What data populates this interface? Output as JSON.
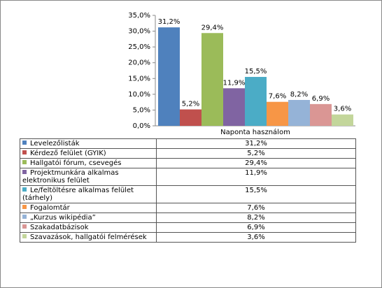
{
  "chart_data": {
    "type": "bar",
    "categories": [
      "Naponta használom"
    ],
    "ylim": [
      0,
      35
    ],
    "yticks": [
      {
        "value": 0,
        "label": "0,0%"
      },
      {
        "value": 5,
        "label": "5,0%"
      },
      {
        "value": 10,
        "label": "10,0%"
      },
      {
        "value": 15,
        "label": "15,0%"
      },
      {
        "value": 20,
        "label": "20,0%"
      },
      {
        "value": 25,
        "label": "25,0%"
      },
      {
        "value": 30,
        "label": "30,0%"
      },
      {
        "value": 35,
        "label": "35,0%"
      }
    ],
    "series": [
      {
        "name": "Levelezőlisták",
        "color": "#4f81bd",
        "values": [
          31.2
        ],
        "value_labels": [
          "31,2%"
        ]
      },
      {
        "name": "Kérdező felület (GYIK)",
        "color": "#c0504d",
        "values": [
          5.2
        ],
        "value_labels": [
          "5,2%"
        ]
      },
      {
        "name": "Hallgatói fórum, csevegés",
        "color": "#9bbb59",
        "values": [
          29.4
        ],
        "value_labels": [
          "29,4%"
        ]
      },
      {
        "name": "Projektmunkára alkalmas elektronikus felület",
        "color": "#8064a2",
        "values": [
          11.9
        ],
        "value_labels": [
          "11,9%"
        ]
      },
      {
        "name": "Le/feltöltésre alkalmas felület (tárhely)",
        "color": "#4bacc6",
        "values": [
          15.5
        ],
        "value_labels": [
          "15,5%"
        ]
      },
      {
        "name": "Fogalomtár",
        "color": "#f79646",
        "values": [
          7.6
        ],
        "value_labels": [
          "7,6%"
        ]
      },
      {
        "name": "„Kurzus wikipédia”",
        "color": "#95b3d7",
        "values": [
          8.2
        ],
        "value_labels": [
          "8,2%"
        ]
      },
      {
        "name": "Szakadatbázisok",
        "color": "#da9694",
        "values": [
          6.9
        ],
        "value_labels": [
          "6,9%"
        ]
      },
      {
        "name": "Szavazások, hallgatói felmérések",
        "color": "#c3d69b",
        "values": [
          3.6
        ],
        "value_labels": [
          "3,6%"
        ]
      }
    ]
  }
}
